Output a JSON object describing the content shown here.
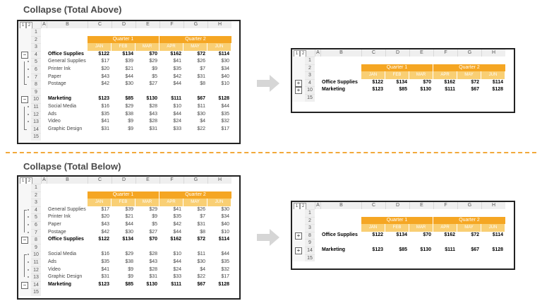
{
  "titles": {
    "above": "Collapse (Total Above)",
    "below": "Collapse (Total Below)"
  },
  "levels": [
    "1",
    "2"
  ],
  "columns": [
    "A",
    "B",
    "C",
    "D",
    "E",
    "F",
    "G",
    "H"
  ],
  "quarters": [
    "Quarter 1",
    "Quarter 2"
  ],
  "months": [
    "JAN",
    "FEB",
    "MAR",
    "APR",
    "MAY",
    "JUN"
  ],
  "above_full": [
    {
      "row": "1",
      "label": "",
      "vals": []
    },
    {
      "row": "2",
      "label": "",
      "vals": []
    },
    {
      "row": "3",
      "label": "",
      "vals": []
    },
    {
      "row": "4",
      "label": "Office Supplies",
      "bold": true,
      "vals": [
        "$122",
        "$134",
        "$70",
        "$162",
        "$72",
        "$114"
      ]
    },
    {
      "row": "5",
      "label": "General Supplies",
      "vals": [
        "$17",
        "$39",
        "$29",
        "$41",
        "$26",
        "$30"
      ]
    },
    {
      "row": "6",
      "label": "Printer Ink",
      "vals": [
        "$20",
        "$21",
        "$9",
        "$35",
        "$7",
        "$34"
      ]
    },
    {
      "row": "7",
      "label": "Paper",
      "vals": [
        "$43",
        "$44",
        "$5",
        "$42",
        "$31",
        "$40"
      ]
    },
    {
      "row": "8",
      "label": "Postage",
      "vals": [
        "$42",
        "$30",
        "$27",
        "$44",
        "$8",
        "$10"
      ]
    },
    {
      "row": "9",
      "label": "",
      "vals": []
    },
    {
      "row": "10",
      "label": "Marketing",
      "bold": true,
      "vals": [
        "$123",
        "$85",
        "$130",
        "$111",
        "$67",
        "$128"
      ]
    },
    {
      "row": "11",
      "label": "Social Media",
      "vals": [
        "$16",
        "$29",
        "$28",
        "$10",
        "$11",
        "$44"
      ]
    },
    {
      "row": "12",
      "label": "Ads",
      "vals": [
        "$35",
        "$38",
        "$43",
        "$44",
        "$30",
        "$35"
      ]
    },
    {
      "row": "13",
      "label": "Video",
      "vals": [
        "$41",
        "$9",
        "$28",
        "$24",
        "$4",
        "$32"
      ]
    },
    {
      "row": "14",
      "label": "Graphic Design",
      "vals": [
        "$31",
        "$9",
        "$31",
        "$33",
        "$22",
        "$17"
      ]
    },
    {
      "row": "15",
      "label": "",
      "vals": []
    }
  ],
  "above_collapsed": [
    {
      "row": "1",
      "label": "",
      "vals": []
    },
    {
      "row": "2",
      "label": "",
      "vals": []
    },
    {
      "row": "3",
      "label": "",
      "vals": []
    },
    {
      "row": "4",
      "label": "Office Supplies",
      "bold": true,
      "vals": [
        "$122",
        "$134",
        "$70",
        "$162",
        "$72",
        "$114"
      ]
    },
    {
      "row": "10",
      "label": "Marketing",
      "bold": true,
      "vals": [
        "$123",
        "$85",
        "$130",
        "$111",
        "$67",
        "$128"
      ]
    },
    {
      "row": "15",
      "label": "",
      "vals": []
    }
  ],
  "below_full": [
    {
      "row": "1",
      "label": "",
      "vals": []
    },
    {
      "row": "2",
      "label": "",
      "vals": []
    },
    {
      "row": "3",
      "label": "",
      "vals": []
    },
    {
      "row": "4",
      "label": "General Supplies",
      "vals": [
        "$17",
        "$39",
        "$29",
        "$41",
        "$26",
        "$30"
      ]
    },
    {
      "row": "5",
      "label": "Printer Ink",
      "vals": [
        "$20",
        "$21",
        "$9",
        "$35",
        "$7",
        "$34"
      ]
    },
    {
      "row": "6",
      "label": "Paper",
      "vals": [
        "$43",
        "$44",
        "$5",
        "$42",
        "$31",
        "$40"
      ]
    },
    {
      "row": "7",
      "label": "Postage",
      "vals": [
        "$42",
        "$30",
        "$27",
        "$44",
        "$8",
        "$10"
      ]
    },
    {
      "row": "8",
      "label": "Office Supplies",
      "bold": true,
      "vals": [
        "$122",
        "$134",
        "$70",
        "$162",
        "$72",
        "$114"
      ]
    },
    {
      "row": "9",
      "label": "",
      "vals": []
    },
    {
      "row": "10",
      "label": "Social Media",
      "vals": [
        "$16",
        "$29",
        "$28",
        "$10",
        "$11",
        "$44"
      ]
    },
    {
      "row": "11",
      "label": "Ads",
      "vals": [
        "$35",
        "$38",
        "$43",
        "$44",
        "$30",
        "$35"
      ]
    },
    {
      "row": "12",
      "label": "Video",
      "vals": [
        "$41",
        "$9",
        "$28",
        "$24",
        "$4",
        "$32"
      ]
    },
    {
      "row": "13",
      "label": "Graphic Design",
      "vals": [
        "$31",
        "$9",
        "$31",
        "$33",
        "$22",
        "$17"
      ]
    },
    {
      "row": "14",
      "label": "Marketing",
      "bold": true,
      "vals": [
        "$123",
        "$85",
        "$130",
        "$111",
        "$67",
        "$128"
      ]
    },
    {
      "row": "15",
      "label": "",
      "vals": []
    }
  ],
  "below_collapsed": [
    {
      "row": "1",
      "label": "",
      "vals": []
    },
    {
      "row": "2",
      "label": "",
      "vals": []
    },
    {
      "row": "3",
      "label": "",
      "vals": []
    },
    {
      "row": "8",
      "label": "Office Supplies",
      "bold": true,
      "vals": [
        "$122",
        "$134",
        "$70",
        "$162",
        "$72",
        "$114"
      ]
    },
    {
      "row": "9",
      "label": "",
      "vals": []
    },
    {
      "row": "14",
      "label": "Marketing",
      "bold": true,
      "vals": [
        "$123",
        "$85",
        "$130",
        "$111",
        "$67",
        "$128"
      ]
    },
    {
      "row": "15",
      "label": "",
      "vals": []
    }
  ],
  "buttons": {
    "collapse": "−",
    "expand": "+"
  },
  "colors": {
    "quarter": "#f5a623",
    "month": "#f9cf74",
    "divider": "#f2a93b"
  },
  "icons": [
    "right-arrow-icon",
    "expand-icon",
    "collapse-icon"
  ]
}
